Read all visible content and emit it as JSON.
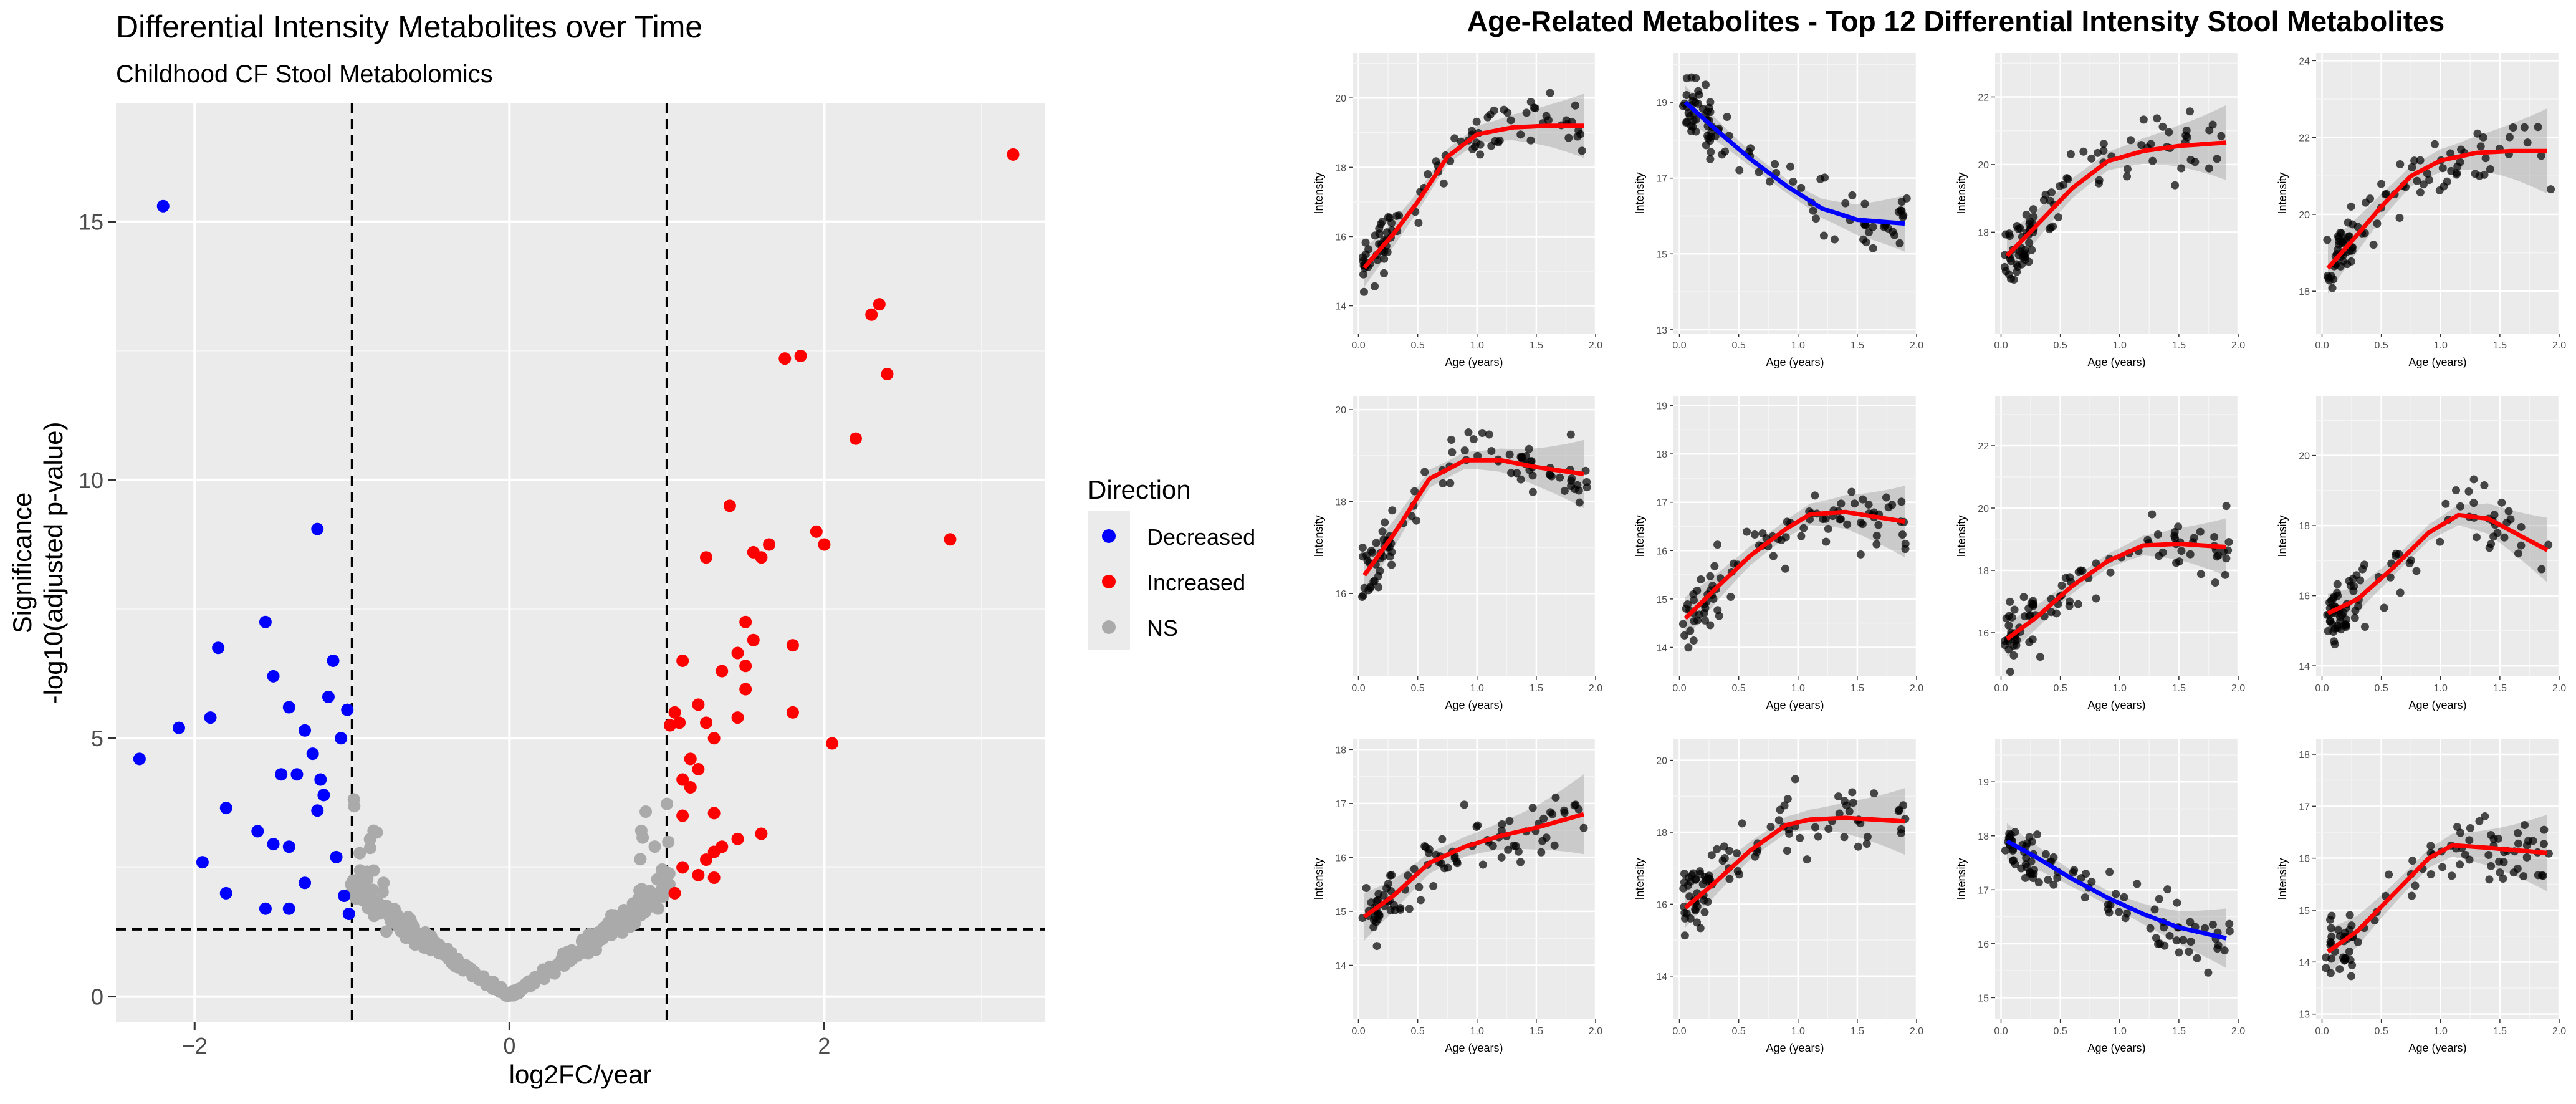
{
  "volcano": {
    "title": "Differential Intensity Metabolites over Time",
    "subtitle": "Childhood CF Stool Metabolomics",
    "xlabel": "log2FC/year",
    "ylabel_line1": "Significance",
    "ylabel_line2": "-log10(adjusted p-value)",
    "legend_title": "Direction",
    "legend_items": [
      {
        "label": "Decreased",
        "color": "#0000FF"
      },
      {
        "label": "Increased",
        "color": "#FF0000"
      },
      {
        "label": "NS",
        "color": "#AAAAAA"
      }
    ]
  },
  "grid": {
    "title": "Age-Related Metabolites - Top 12 Differential Intensity Stool Metabolites",
    "xlabel": "Age (years)",
    "ylabel": "Intensity"
  },
  "chart_data": [
    {
      "type": "scatter",
      "title": "Differential Intensity Metabolites over Time",
      "subtitle": "Childhood CF Stool Metabolomics",
      "xlabel": "log2FC/year",
      "ylabel": "Significance -log10(adjusted p-value)",
      "xlim": [
        -2.5,
        3.4
      ],
      "ylim": [
        -0.5,
        17.3
      ],
      "xticks": [
        -2,
        0,
        2
      ],
      "yticks": [
        0,
        5,
        10,
        15
      ],
      "vlines": [
        -1,
        1
      ],
      "hline": 1.3,
      "legend_position": "right",
      "series": [
        {
          "name": "Decreased",
          "color": "#0000FF",
          "points": [
            [
              -2.2,
              15.3
            ],
            [
              -2.35,
              4.6
            ],
            [
              -2.1,
              5.2
            ],
            [
              -1.85,
              6.75
            ],
            [
              -1.8,
              3.65
            ],
            [
              -1.6,
              3.2
            ],
            [
              -1.55,
              7.25
            ],
            [
              -1.5,
              6.2
            ],
            [
              -1.45,
              4.3
            ],
            [
              -1.4,
              5.6
            ],
            [
              -1.35,
              4.3
            ],
            [
              -1.3,
              5.15
            ],
            [
              -1.25,
              4.7
            ],
            [
              -1.22,
              9.05
            ],
            [
              -1.2,
              4.2
            ],
            [
              -1.18,
              3.9
            ],
            [
              -1.15,
              5.8
            ],
            [
              -1.12,
              6.5
            ],
            [
              -1.1,
              2.7
            ],
            [
              -1.07,
              5.0
            ],
            [
              -1.05,
              1.95
            ],
            [
              -1.03,
              5.55
            ],
            [
              -1.02,
              1.6
            ],
            [
              -1.95,
              2.6
            ],
            [
              -1.8,
              2.0
            ],
            [
              -1.55,
              1.7
            ],
            [
              -1.4,
              1.7
            ],
            [
              -1.3,
              2.2
            ],
            [
              -1.5,
              2.95
            ],
            [
              -1.4,
              2.9
            ],
            [
              -1.22,
              3.6
            ],
            [
              -1.9,
              5.4
            ]
          ]
        },
        {
          "name": "Increased",
          "color": "#FF0000",
          "points": [
            [
              3.2,
              16.3
            ],
            [
              2.35,
              13.4
            ],
            [
              2.3,
              13.2
            ],
            [
              2.4,
              12.05
            ],
            [
              1.75,
              12.35
            ],
            [
              1.85,
              12.4
            ],
            [
              2.2,
              10.8
            ],
            [
              1.4,
              9.5
            ],
            [
              1.95,
              9.0
            ],
            [
              2.0,
              8.75
            ],
            [
              2.8,
              8.85
            ],
            [
              1.55,
              8.6
            ],
            [
              1.6,
              8.5
            ],
            [
              1.65,
              8.75
            ],
            [
              1.25,
              8.5
            ],
            [
              1.5,
              7.25
            ],
            [
              1.8,
              6.8
            ],
            [
              1.45,
              6.65
            ],
            [
              1.55,
              6.9
            ],
            [
              1.1,
              6.5
            ],
            [
              1.5,
              6.4
            ],
            [
              1.35,
              6.3
            ],
            [
              1.5,
              5.95
            ],
            [
              1.2,
              5.65
            ],
            [
              1.05,
              5.5
            ],
            [
              1.8,
              5.5
            ],
            [
              1.25,
              5.3
            ],
            [
              1.45,
              5.4
            ],
            [
              1.02,
              5.25
            ],
            [
              1.08,
              5.3
            ],
            [
              1.3,
              5.0
            ],
            [
              2.05,
              4.9
            ],
            [
              1.15,
              4.6
            ],
            [
              1.2,
              4.4
            ],
            [
              1.1,
              4.2
            ],
            [
              1.15,
              4.05
            ],
            [
              1.3,
              3.55
            ],
            [
              1.1,
              3.5
            ],
            [
              1.6,
              3.15
            ],
            [
              1.45,
              3.05
            ],
            [
              1.35,
              2.9
            ],
            [
              1.3,
              2.8
            ],
            [
              1.25,
              2.65
            ],
            [
              1.2,
              2.35
            ],
            [
              1.1,
              2.5
            ],
            [
              1.05,
              2.0
            ],
            [
              1.3,
              2.3
            ]
          ]
        }
      ],
      "ns_series": {
        "name": "NS",
        "color": "#AAAAAA",
        "shape": "V-shaped cloud of ~350 non-significant points from (0,0) rising toward |x|=1 at y≈2–4"
      }
    },
    {
      "type": "scatter",
      "title": "Age-Related Metabolites - Top 12 Differential Intensity Stool Metabolites",
      "xlabel": "Age (years)",
      "ylabel": "Intensity",
      "xlim": [
        0,
        2
      ],
      "xticks": [
        0.0,
        0.5,
        1.0,
        1.5,
        2.0
      ],
      "panels": [
        {
          "direction": "Increased",
          "ylim": [
            13.2,
            21.3
          ],
          "yticks": [
            14,
            16,
            18,
            20
          ],
          "fit": [
            [
              0.05,
              15.1
            ],
            [
              0.3,
              16.1
            ],
            [
              0.5,
              17.0
            ],
            [
              0.75,
              18.3
            ],
            [
              1.0,
              18.95
            ],
            [
              1.3,
              19.15
            ],
            [
              1.6,
              19.2
            ],
            [
              1.9,
              19.2
            ]
          ],
          "band": 0.5
        },
        {
          "direction": "Decreased",
          "ylim": [
            12.9,
            20.3
          ],
          "yticks": [
            13,
            15,
            17,
            19
          ],
          "fit": [
            [
              0.05,
              19.0
            ],
            [
              0.3,
              18.3
            ],
            [
              0.6,
              17.5
            ],
            [
              0.9,
              16.8
            ],
            [
              1.2,
              16.2
            ],
            [
              1.5,
              15.9
            ],
            [
              1.9,
              15.8
            ]
          ],
          "band": 0.4
        },
        {
          "direction": "Increased",
          "ylim": [
            15.0,
            23.3
          ],
          "yticks": [
            18,
            20,
            22
          ],
          "fit": [
            [
              0.05,
              17.3
            ],
            [
              0.3,
              18.2
            ],
            [
              0.6,
              19.3
            ],
            [
              0.9,
              20.1
            ],
            [
              1.2,
              20.4
            ],
            [
              1.5,
              20.55
            ],
            [
              1.9,
              20.65
            ]
          ],
          "band": 0.6
        },
        {
          "direction": "Increased",
          "ylim": [
            16.9,
            24.2
          ],
          "yticks": [
            18,
            20,
            22,
            24
          ],
          "fit": [
            [
              0.05,
              18.6
            ],
            [
              0.25,
              19.3
            ],
            [
              0.5,
              20.2
            ],
            [
              0.75,
              21.0
            ],
            [
              1.0,
              21.4
            ],
            [
              1.3,
              21.6
            ],
            [
              1.6,
              21.65
            ],
            [
              1.9,
              21.65
            ]
          ],
          "band": 0.6
        },
        {
          "direction": "Increased",
          "ylim": [
            14.2,
            20.3
          ],
          "yticks": [
            16,
            18,
            20
          ],
          "fit": [
            [
              0.05,
              16.4
            ],
            [
              0.3,
              17.3
            ],
            [
              0.6,
              18.5
            ],
            [
              0.9,
              18.9
            ],
            [
              1.2,
              18.9
            ],
            [
              1.5,
              18.75
            ],
            [
              1.9,
              18.6
            ]
          ],
          "band": 0.4
        },
        {
          "direction": "Increased",
          "ylim": [
            13.4,
            19.2
          ],
          "yticks": [
            14,
            15,
            16,
            17,
            18,
            19
          ],
          "fit": [
            [
              0.05,
              14.6
            ],
            [
              0.3,
              15.2
            ],
            [
              0.6,
              15.9
            ],
            [
              0.9,
              16.45
            ],
            [
              1.1,
              16.75
            ],
            [
              1.4,
              16.8
            ],
            [
              1.9,
              16.6
            ]
          ],
          "band": 0.4
        },
        {
          "direction": "Increased",
          "ylim": [
            14.6,
            23.6
          ],
          "yticks": [
            16,
            18,
            20,
            22
          ],
          "fit": [
            [
              0.05,
              15.8
            ],
            [
              0.3,
              16.5
            ],
            [
              0.6,
              17.5
            ],
            [
              0.9,
              18.3
            ],
            [
              1.2,
              18.8
            ],
            [
              1.5,
              18.85
            ],
            [
              1.9,
              18.75
            ]
          ],
          "band": 0.5
        },
        {
          "direction": "Increased",
          "ylim": [
            13.7,
            21.7
          ],
          "yticks": [
            14,
            16,
            18,
            20
          ],
          "fit": [
            [
              0.05,
              15.5
            ],
            [
              0.3,
              15.9
            ],
            [
              0.6,
              16.8
            ],
            [
              0.9,
              17.8
            ],
            [
              1.15,
              18.3
            ],
            [
              1.4,
              18.2
            ],
            [
              1.9,
              17.3
            ]
          ],
          "band": 0.5
        },
        {
          "direction": "Increased",
          "ylim": [
            13.0,
            18.2
          ],
          "yticks": [
            14,
            15,
            16,
            17,
            18
          ],
          "fit": [
            [
              0.05,
              14.9
            ],
            [
              0.3,
              15.3
            ],
            [
              0.6,
              15.9
            ],
            [
              0.9,
              16.2
            ],
            [
              1.2,
              16.4
            ],
            [
              1.5,
              16.55
            ],
            [
              1.9,
              16.8
            ]
          ],
          "band": 0.4
        },
        {
          "direction": "Increased",
          "ylim": [
            12.8,
            20.6
          ],
          "yticks": [
            14,
            16,
            18,
            20
          ],
          "fit": [
            [
              0.05,
              15.9
            ],
            [
              0.3,
              16.6
            ],
            [
              0.6,
              17.5
            ],
            [
              0.9,
              18.2
            ],
            [
              1.1,
              18.35
            ],
            [
              1.4,
              18.4
            ],
            [
              1.9,
              18.3
            ]
          ],
          "band": 0.5
        },
        {
          "direction": "Decreased",
          "ylim": [
            14.6,
            19.8
          ],
          "yticks": [
            15,
            16,
            17,
            18,
            19
          ],
          "fit": [
            [
              0.05,
              17.9
            ],
            [
              0.3,
              17.6
            ],
            [
              0.6,
              17.2
            ],
            [
              0.9,
              16.85
            ],
            [
              1.2,
              16.55
            ],
            [
              1.5,
              16.3
            ],
            [
              1.9,
              16.1
            ]
          ],
          "band": 0.3
        },
        {
          "direction": "Increased",
          "ylim": [
            12.9,
            18.3
          ],
          "yticks": [
            13,
            14,
            15,
            16,
            17,
            18
          ],
          "fit": [
            [
              0.05,
              14.2
            ],
            [
              0.3,
              14.6
            ],
            [
              0.6,
              15.3
            ],
            [
              0.9,
              16.0
            ],
            [
              1.1,
              16.25
            ],
            [
              1.4,
              16.2
            ],
            [
              1.9,
              16.1
            ]
          ],
          "band": 0.4
        }
      ]
    }
  ]
}
